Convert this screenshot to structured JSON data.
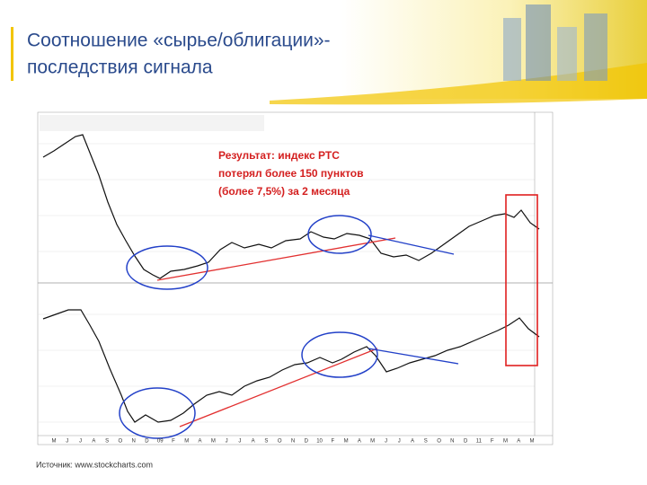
{
  "header": {
    "title": "Соотношение «сырье/облигации»-",
    "subtitle": "последствия сигнала"
  },
  "annotation": {
    "lines": [
      "Результат: индекс РТС",
      "потерял более 150 пунктов",
      "(более 7,5%) за 2 месяца"
    ]
  },
  "chart": {
    "months": [
      "M",
      "J",
      "J",
      "A",
      "S",
      "O",
      "N",
      "D",
      "09",
      "F",
      "M",
      "A",
      "M",
      "J",
      "J",
      "A",
      "S",
      "O",
      "N",
      "D",
      "10",
      "F",
      "M",
      "A",
      "M",
      "J",
      "J",
      "A",
      "S",
      "O",
      "N",
      "D",
      "11",
      "F",
      "M",
      "A",
      "M"
    ]
  },
  "footer": {
    "source": "Источник: www.stockcharts.com"
  }
}
